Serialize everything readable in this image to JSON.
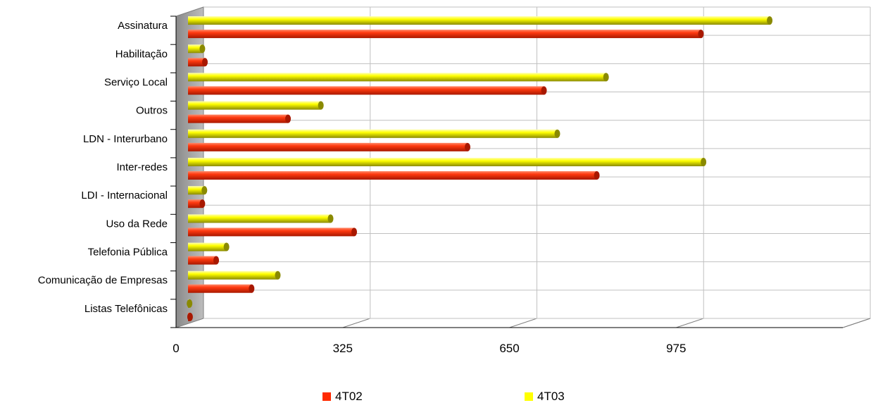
{
  "chart_data": {
    "type": "bar",
    "orientation": "horizontal",
    "style": "3d-cylinder",
    "categories": [
      "Assinatura",
      "Habilitação",
      "Serviço Local",
      "Outros",
      "LDN - Interurbano",
      "Inter-redes",
      "LDI - Internacional",
      "Uso da Rede",
      "Telefonia Pública",
      "Comunicação de Empresas",
      "Listas Telefônicas"
    ],
    "series": [
      {
        "name": "4T02",
        "color": "#ff2a00",
        "values": [
          1000,
          33,
          694,
          195,
          545,
          797,
          28,
          324,
          55,
          124,
          4
        ]
      },
      {
        "name": "4T03",
        "color": "#ffff00",
        "values": [
          1134,
          28,
          815,
          259,
          720,
          1005,
          32,
          278,
          75,
          175,
          3
        ]
      }
    ],
    "xlim": [
      0,
      1300
    ],
    "xticks": [
      "0",
      "325",
      "650",
      "975"
    ],
    "grid": true,
    "legend_position": "bottom"
  }
}
